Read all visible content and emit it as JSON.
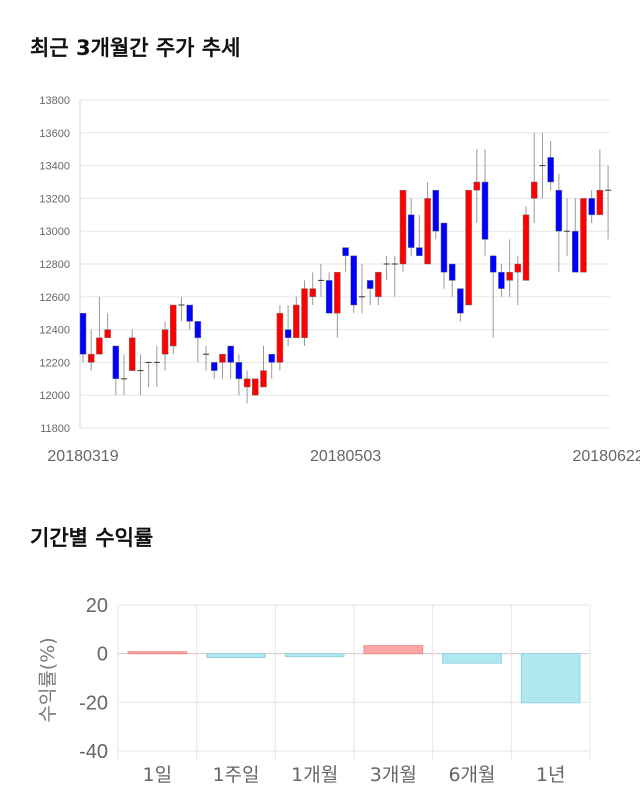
{
  "chart_data": [
    {
      "type": "candlestick",
      "title": "최근 3개월간 주가 추세",
      "ylim": [
        11800,
        13800
      ],
      "yticks": [
        11800,
        12000,
        12200,
        12400,
        12600,
        12800,
        13000,
        13200,
        13400,
        13600,
        13800
      ],
      "xtick_labels": [
        {
          "index": 0,
          "label": "20180319"
        },
        {
          "index": 32,
          "label": "20180503"
        },
        {
          "index": 64,
          "label": "20180622"
        }
      ],
      "colors": {
        "up": "#ff0000",
        "down": "#0000ff",
        "wick": "#999999"
      },
      "candles": [
        [
          12500,
          12250,
          12500,
          12200
        ],
        [
          12200,
          12250,
          12400,
          12150
        ],
        [
          12250,
          12350,
          12600,
          12250
        ],
        [
          12350,
          12400,
          12500,
          12350
        ],
        [
          12300,
          12100,
          12300,
          12000
        ],
        [
          12100,
          12100,
          12250,
          12000
        ],
        [
          12150,
          12350,
          12400,
          12150
        ],
        [
          12150,
          12150,
          12250,
          12000
        ],
        [
          12200,
          12200,
          12200,
          12050
        ],
        [
          12200,
          12200,
          12300,
          12050
        ],
        [
          12250,
          12400,
          12450,
          12150
        ],
        [
          12300,
          12550,
          12550,
          12250
        ],
        [
          12550,
          12550,
          12600,
          12450
        ],
        [
          12550,
          12450,
          12550,
          12400
        ],
        [
          12450,
          12350,
          12450,
          12200
        ],
        [
          12250,
          12250,
          12300,
          12150
        ],
        [
          12200,
          12150,
          12200,
          12100
        ],
        [
          12200,
          12250,
          12250,
          12100
        ],
        [
          12300,
          12200,
          12300,
          12100
        ],
        [
          12200,
          12100,
          12250,
          12000
        ],
        [
          12050,
          12100,
          12150,
          11950
        ],
        [
          12000,
          12100,
          12100,
          12000
        ],
        [
          12050,
          12150,
          12300,
          12050
        ],
        [
          12250,
          12200,
          12250,
          12100
        ],
        [
          12200,
          12500,
          12550,
          12150
        ],
        [
          12400,
          12350,
          12550,
          12300
        ],
        [
          12350,
          12550,
          12600,
          12350
        ],
        [
          12350,
          12650,
          12700,
          12300
        ],
        [
          12600,
          12650,
          12750,
          12550
        ],
        [
          12700,
          12700,
          12800,
          12600
        ],
        [
          12700,
          12500,
          12750,
          12500
        ],
        [
          12500,
          12750,
          12750,
          12350
        ],
        [
          12900,
          12850,
          12900,
          12750
        ],
        [
          12850,
          12550,
          12850,
          12500
        ],
        [
          12600,
          12600,
          12800,
          12500
        ],
        [
          12700,
          12650,
          12700,
          12550
        ],
        [
          12600,
          12750,
          12750,
          12550
        ],
        [
          12800,
          12800,
          12850,
          12700
        ],
        [
          12800,
          12800,
          12850,
          12600
        ],
        [
          12800,
          13250,
          13250,
          12750
        ],
        [
          13100,
          12900,
          13200,
          12850
        ],
        [
          12900,
          12850,
          13100,
          12850
        ],
        [
          12800,
          13200,
          13300,
          12800
        ],
        [
          13250,
          13000,
          13250,
          12950
        ],
        [
          13050,
          12750,
          13050,
          12650
        ],
        [
          12800,
          12700,
          12800,
          12600
        ],
        [
          12650,
          12500,
          12650,
          12450
        ],
        [
          12550,
          13250,
          13250,
          12550
        ],
        [
          13250,
          13300,
          13500,
          13050
        ],
        [
          13300,
          12950,
          13500,
          12850
        ],
        [
          12850,
          12750,
          12850,
          12350
        ],
        [
          12750,
          12650,
          12800,
          12600
        ],
        [
          12700,
          12750,
          12950,
          12600
        ],
        [
          12750,
          12800,
          12850,
          12550
        ],
        [
          12700,
          13100,
          13150,
          12700
        ],
        [
          13200,
          13300,
          13600,
          13050
        ],
        [
          13400,
          13400,
          13600,
          13200
        ],
        [
          13450,
          13300,
          13550,
          13250
        ],
        [
          13250,
          13000,
          13350,
          12750
        ],
        [
          13000,
          13000,
          13200,
          12850
        ],
        [
          13000,
          12750,
          13200,
          12750
        ],
        [
          12750,
          13200,
          13200,
          12750
        ],
        [
          13200,
          13100,
          13250,
          13050
        ],
        [
          13100,
          13250,
          13500,
          13100
        ],
        [
          13250,
          13250,
          13400,
          12950
        ]
      ],
      "candle_fields": [
        "open",
        "close",
        "high",
        "low"
      ]
    },
    {
      "type": "bar",
      "title": "기간별 수익률",
      "ylabel": "수익률(%)",
      "ylim": [
        -40,
        20
      ],
      "yticks": [
        20,
        0,
        -20,
        -40
      ],
      "categories": [
        "1일",
        "1주일",
        "1개월",
        "3개월",
        "6개월",
        "1년"
      ],
      "values": [
        0.8,
        -1.6,
        -1.2,
        3.3,
        -3.9,
        -20.2
      ],
      "colors": {
        "positive": "#ffa6a6",
        "negative": "#b0e8f0"
      }
    }
  ]
}
